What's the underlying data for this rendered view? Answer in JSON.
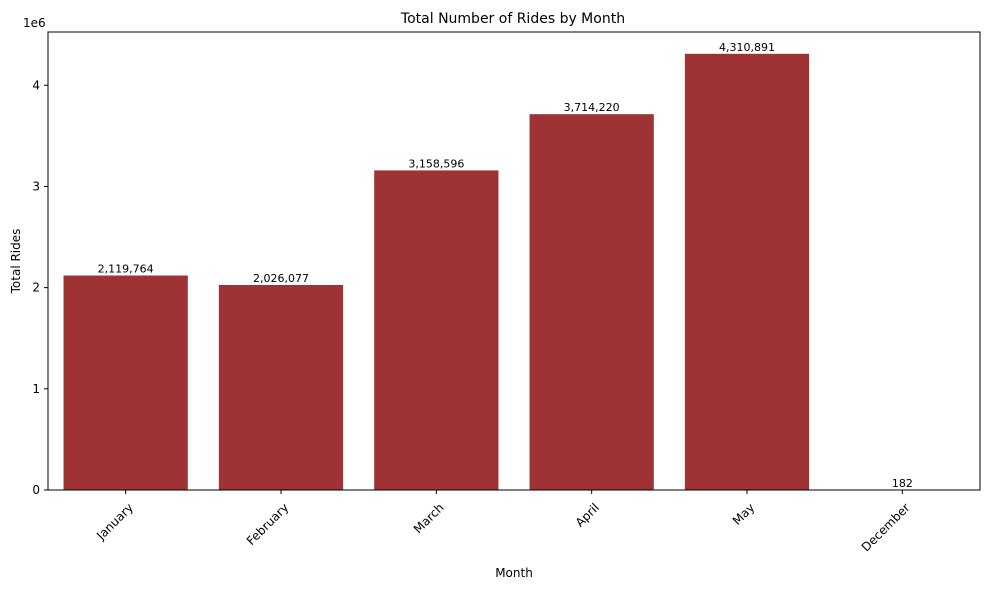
{
  "chart_data": {
    "type": "bar",
    "title": "Total Number of Rides by Month",
    "xlabel": "Month",
    "ylabel": "Total Rides",
    "y_scale_label": "1e6",
    "categories": [
      "January",
      "February",
      "March",
      "April",
      "May",
      "December"
    ],
    "values": [
      2119764,
      2026077,
      3158596,
      3714220,
      4310891,
      182
    ],
    "data_labels": [
      "2,119,764",
      "2,026,077",
      "3,158,596",
      "3,714,220",
      "4,310,891",
      "182"
    ],
    "ylim": [
      0,
      4526435
    ],
    "yticks": [
      0,
      1000000,
      2000000,
      3000000,
      4000000
    ],
    "ytick_labels": [
      "0",
      "1",
      "2",
      "3",
      "4"
    ],
    "grid": false,
    "bar_color": "#9e3235"
  }
}
